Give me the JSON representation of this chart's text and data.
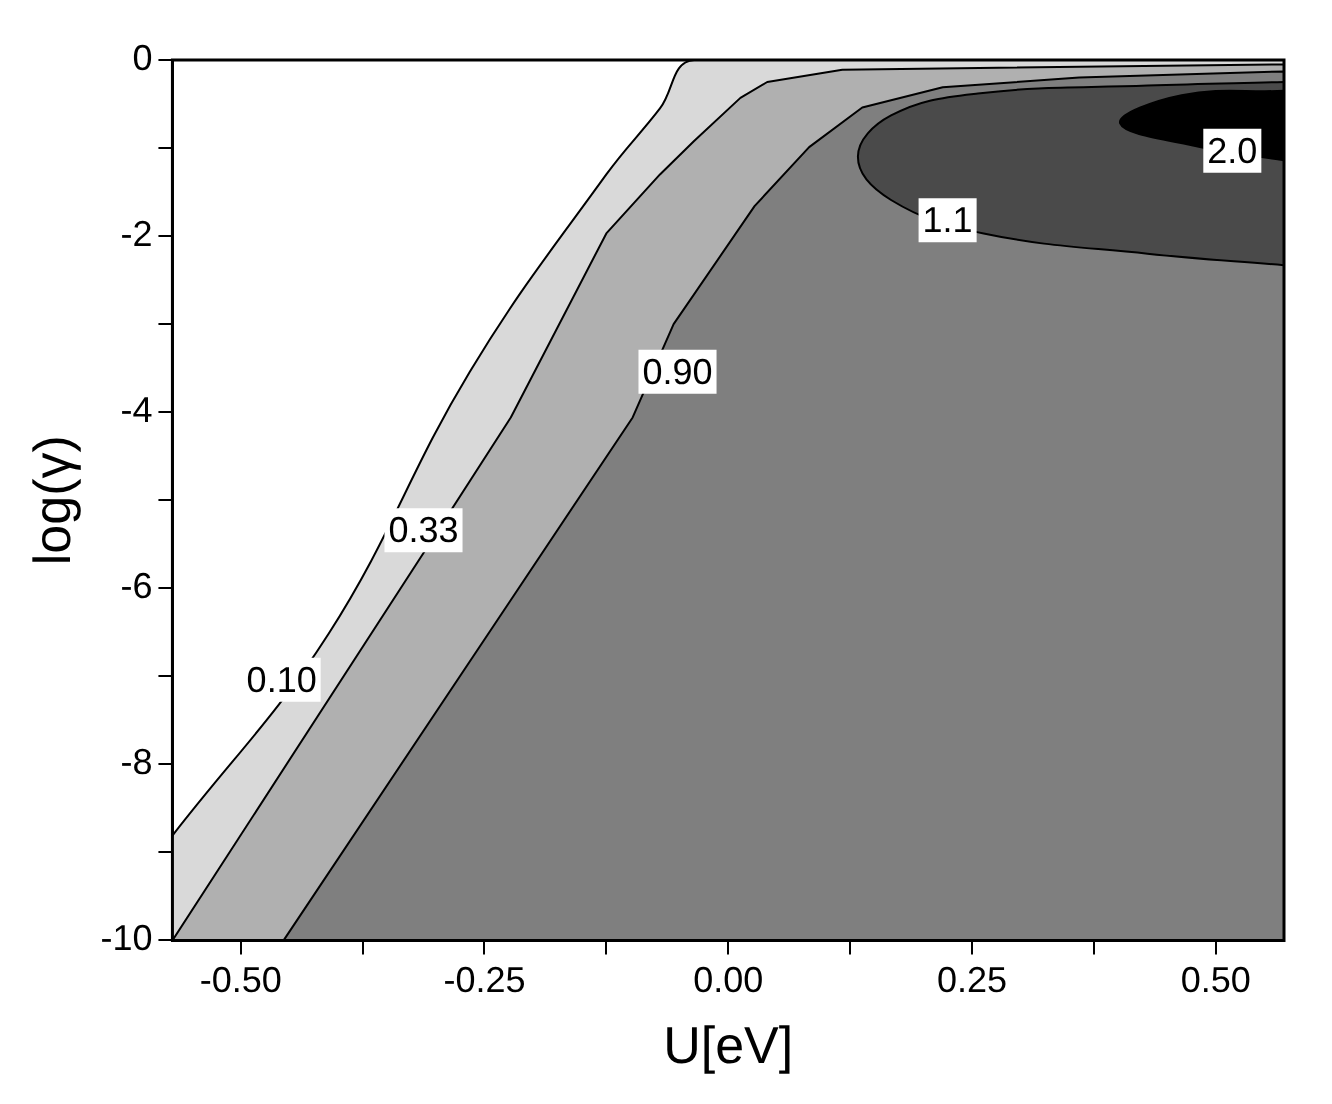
{
  "chart_data": {
    "type": "area",
    "xlabel": "U[eV]",
    "ylabel": "log(γ)",
    "xlim": [
      -0.57,
      0.57
    ],
    "ylim": [
      -10,
      0
    ],
    "xticks": [
      {
        "value": -0.5,
        "label": "-0.50"
      },
      {
        "value": -0.375,
        "label": null
      },
      {
        "value": -0.25,
        "label": "-0.25"
      },
      {
        "value": -0.125,
        "label": null
      },
      {
        "value": 0,
        "label": "0.00"
      },
      {
        "value": 0.125,
        "label": null
      },
      {
        "value": 0.25,
        "label": "0.25"
      },
      {
        "value": 0.375,
        "label": null
      },
      {
        "value": 0.5,
        "label": "0.50"
      }
    ],
    "yticks": [
      -10,
      {
        "value": -9,
        "label": null
      },
      -8,
      {
        "value": -7,
        "label": null
      },
      -6,
      {
        "value": -5,
        "label": null
      },
      -4,
      {
        "value": -3,
        "label": null
      },
      -2,
      {
        "value": -1,
        "label": null
      },
      0
    ],
    "grid": false,
    "legend": false,
    "marker": "none",
    "line_style": "solid",
    "series": [
      {
        "color": "#d9d9d9",
        "x": [
          -0.57,
          -0.41,
          -0.265,
          -0.125,
          -0.07,
          -0.035,
          0.57,
          0.57,
          -0.57
        ],
        "values": [
          -8.81,
          -6.52,
          -3.54,
          -1.3,
          -0.55,
          0,
          0,
          -10,
          -10
        ]
      },
      {
        "color": "#b0b0b0",
        "x": [
          -0.57,
          -0.3125,
          -0.223,
          -0.125,
          -0.07,
          -0.035,
          0.0125,
          0.04,
          0.117,
          0.57,
          0.57
        ],
        "values": [
          -10,
          -5.6,
          -4.06,
          -1.97,
          -1.3,
          -0.92,
          -0.43,
          -0.25,
          -0.11,
          -0.05,
          -10
        ]
      },
      {
        "color": "#7f7f7f",
        "x": [
          -0.456,
          -0.098,
          -0.056,
          0.027,
          0.083,
          0.1375,
          0.22,
          0.36,
          0.57,
          0.57
        ],
        "values": [
          -10,
          -4.06,
          -3,
          -1.66,
          -0.99,
          -0.54,
          -0.31,
          -0.2,
          -0.13,
          -10
        ]
      },
      {
        "color": "#4a4a4a",
        "x": [
          0.57,
          0.43,
          0.256,
          0.167,
          0.133,
          0.167,
          0.262,
          0.43,
          0.57
        ],
        "values": [
          -0.25,
          -0.29,
          -0.38,
          -0.63,
          -1.1,
          -1.59,
          -1.97,
          -2.2,
          -2.33
        ]
      },
      {
        "color": "#000000",
        "x": [
          0.57,
          0.465,
          0.402,
          0.485,
          0.57
        ],
        "values": [
          -0.35,
          -0.4,
          -0.72,
          -0.99,
          -1.14
        ]
      }
    ],
    "annotations": [
      {
        "text": "0.10",
        "x": -0.458,
        "y": -7.04
      },
      {
        "text": "0.33",
        "x": -0.3125,
        "y": -5.34
      },
      {
        "text": "0.90",
        "x": -0.052,
        "y": -3.54
      },
      {
        "text": "1.1",
        "x": 0.225,
        "y": -1.82
      },
      {
        "text": "2.0",
        "x": 0.517,
        "y": -1.03
      }
    ]
  }
}
